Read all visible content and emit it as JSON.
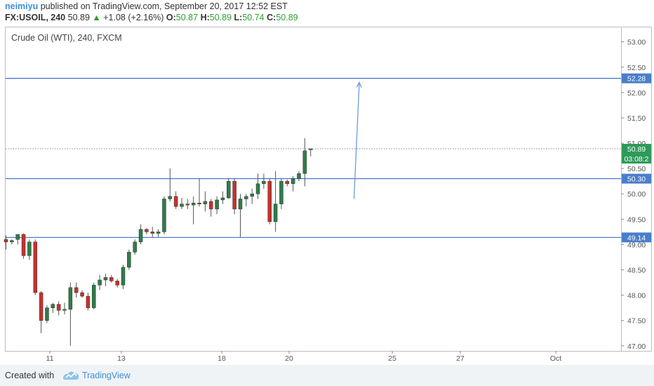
{
  "header": {
    "user": "neimiyu",
    "published": "published on TradingView.com, September 20, 2017 12:52 EST",
    "symbol": "FX:USOIL, 240",
    "last": "50.89",
    "change": "+1.08 (+2.16%)",
    "o_label": "O:",
    "o_value": "50.87",
    "h_label": "H:",
    "h_value": "50.89",
    "l_label": "L:",
    "l_value": "50.74",
    "c_label": "C:",
    "c_value": "50.89"
  },
  "footer": {
    "created_with": "Created with",
    "brand": "TradingView"
  },
  "colors": {
    "up": "#2e7d48",
    "down": "#c9302c",
    "line": "#3a6fd0",
    "label_bg": "#4a7ec9",
    "last_bg": "#2e9a5a",
    "arrow": "#6f9bd8"
  },
  "chart_data": {
    "type": "candlestick",
    "title": "Crude Oil (WTI), 240, FXCM",
    "ylim": [
      46.9,
      53.3
    ],
    "y_ticks": [
      "47.00",
      "47.50",
      "48.00",
      "48.50",
      "49.00",
      "49.50",
      "50.00",
      "50.50",
      "51.00",
      "51.50",
      "52.00",
      "52.50",
      "53.00"
    ],
    "x_ticks": [
      "11",
      "13",
      "18",
      "20",
      "25",
      "27",
      "Oct"
    ],
    "candles": [
      {
        "i": 0,
        "o": 49.1,
        "h": 49.18,
        "l": 48.9,
        "c": 49.05
      },
      {
        "i": 1,
        "o": 49.05,
        "h": 49.1,
        "l": 49.0,
        "c": 49.08
      },
      {
        "i": 2,
        "o": 49.1,
        "h": 49.2,
        "l": 49.0,
        "c": 49.2
      },
      {
        "i": 3,
        "o": 49.2,
        "h": 49.22,
        "l": 48.72,
        "c": 48.78
      },
      {
        "i": 4,
        "o": 48.78,
        "h": 49.1,
        "l": 48.7,
        "c": 49.05
      },
      {
        "i": 5,
        "o": 49.05,
        "h": 49.1,
        "l": 48.0,
        "c": 48.05
      },
      {
        "i": 6,
        "o": 48.05,
        "h": 48.08,
        "l": 47.25,
        "c": 47.5
      },
      {
        "i": 7,
        "o": 47.5,
        "h": 47.8,
        "l": 47.45,
        "c": 47.75
      },
      {
        "i": 8,
        "o": 47.75,
        "h": 47.85,
        "l": 47.65,
        "c": 47.82
      },
      {
        "i": 9,
        "o": 47.82,
        "h": 47.88,
        "l": 47.6,
        "c": 47.7
      },
      {
        "i": 10,
        "o": 47.7,
        "h": 47.85,
        "l": 47.62,
        "c": 47.72
      },
      {
        "i": 11,
        "o": 47.72,
        "h": 48.25,
        "l": 47.0,
        "c": 48.15
      },
      {
        "i": 12,
        "o": 48.15,
        "h": 48.25,
        "l": 47.95,
        "c": 48.05
      },
      {
        "i": 13,
        "o": 48.05,
        "h": 48.1,
        "l": 47.95,
        "c": 47.98
      },
      {
        "i": 14,
        "o": 47.98,
        "h": 48.05,
        "l": 47.7,
        "c": 47.75
      },
      {
        "i": 15,
        "o": 47.75,
        "h": 48.25,
        "l": 47.72,
        "c": 48.2
      },
      {
        "i": 16,
        "o": 48.2,
        "h": 48.4,
        "l": 48.1,
        "c": 48.3
      },
      {
        "i": 17,
        "o": 48.3,
        "h": 48.42,
        "l": 48.18,
        "c": 48.35
      },
      {
        "i": 18,
        "o": 48.35,
        "h": 48.4,
        "l": 48.25,
        "c": 48.28
      },
      {
        "i": 19,
        "o": 48.28,
        "h": 48.32,
        "l": 48.15,
        "c": 48.2
      },
      {
        "i": 20,
        "o": 48.2,
        "h": 48.6,
        "l": 48.12,
        "c": 48.55
      },
      {
        "i": 21,
        "o": 48.55,
        "h": 48.9,
        "l": 48.5,
        "c": 48.85
      },
      {
        "i": 22,
        "o": 48.85,
        "h": 49.1,
        "l": 48.8,
        "c": 49.05
      },
      {
        "i": 23,
        "o": 49.05,
        "h": 49.4,
        "l": 49.0,
        "c": 49.3
      },
      {
        "i": 24,
        "o": 49.3,
        "h": 49.32,
        "l": 49.2,
        "c": 49.25
      },
      {
        "i": 25,
        "o": 49.25,
        "h": 49.35,
        "l": 49.15,
        "c": 49.22
      },
      {
        "i": 26,
        "o": 49.22,
        "h": 49.3,
        "l": 49.15,
        "c": 49.25
      },
      {
        "i": 27,
        "o": 49.25,
        "h": 49.95,
        "l": 49.2,
        "c": 49.9
      },
      {
        "i": 28,
        "o": 49.9,
        "h": 50.5,
        "l": 49.85,
        "c": 49.95
      },
      {
        "i": 29,
        "o": 49.95,
        "h": 50.05,
        "l": 49.7,
        "c": 49.75
      },
      {
        "i": 30,
        "o": 49.75,
        "h": 49.92,
        "l": 49.7,
        "c": 49.8
      },
      {
        "i": 31,
        "o": 49.8,
        "h": 49.9,
        "l": 49.7,
        "c": 49.78
      },
      {
        "i": 32,
        "o": 49.78,
        "h": 49.95,
        "l": 49.4,
        "c": 49.82
      },
      {
        "i": 33,
        "o": 49.82,
        "h": 50.3,
        "l": 49.75,
        "c": 49.8
      },
      {
        "i": 34,
        "o": 49.8,
        "h": 50.05,
        "l": 49.65,
        "c": 49.85
      },
      {
        "i": 35,
        "o": 49.85,
        "h": 49.9,
        "l": 49.55,
        "c": 49.7
      },
      {
        "i": 36,
        "o": 49.7,
        "h": 49.95,
        "l": 49.6,
        "c": 49.88
      },
      {
        "i": 37,
        "o": 49.88,
        "h": 50.05,
        "l": 49.8,
        "c": 49.92
      },
      {
        "i": 38,
        "o": 49.92,
        "h": 50.3,
        "l": 49.9,
        "c": 50.25
      },
      {
        "i": 39,
        "o": 50.25,
        "h": 50.3,
        "l": 49.6,
        "c": 49.7
      },
      {
        "i": 40,
        "o": 49.7,
        "h": 50.0,
        "l": 49.15,
        "c": 49.9
      },
      {
        "i": 41,
        "o": 49.9,
        "h": 50.0,
        "l": 49.75,
        "c": 49.95
      },
      {
        "i": 42,
        "o": 49.95,
        "h": 50.1,
        "l": 49.8,
        "c": 50.0
      },
      {
        "i": 43,
        "o": 50.0,
        "h": 50.4,
        "l": 49.9,
        "c": 50.2
      },
      {
        "i": 44,
        "o": 50.2,
        "h": 50.4,
        "l": 50.1,
        "c": 50.25
      },
      {
        "i": 45,
        "o": 50.25,
        "h": 50.3,
        "l": 49.4,
        "c": 49.45
      },
      {
        "i": 46,
        "o": 49.45,
        "h": 50.45,
        "l": 49.25,
        "c": 49.8
      },
      {
        "i": 47,
        "o": 49.8,
        "h": 50.3,
        "l": 49.7,
        "c": 50.25
      },
      {
        "i": 48,
        "o": 50.25,
        "h": 50.28,
        "l": 50.15,
        "c": 50.2
      },
      {
        "i": 49,
        "o": 50.2,
        "h": 50.35,
        "l": 50.05,
        "c": 50.3
      },
      {
        "i": 50,
        "o": 50.3,
        "h": 50.45,
        "l": 50.25,
        "c": 50.4
      },
      {
        "i": 51,
        "o": 50.4,
        "h": 51.1,
        "l": 50.15,
        "c": 50.85
      },
      {
        "i": 52,
        "o": 50.87,
        "h": 50.89,
        "l": 50.74,
        "c": 50.89
      }
    ],
    "levels": [
      {
        "price": 52.28,
        "label": "52.28"
      },
      {
        "price": 50.3,
        "label": "50.30"
      },
      {
        "price": 49.14,
        "label": "49.14"
      }
    ],
    "last_price": {
      "price": 50.89,
      "label": "50.89",
      "countdown": "03:08:2"
    },
    "arrow": {
      "from": [
        52.9,
        49.9
      ],
      "to": [
        53.8,
        52.2
      ]
    }
  }
}
